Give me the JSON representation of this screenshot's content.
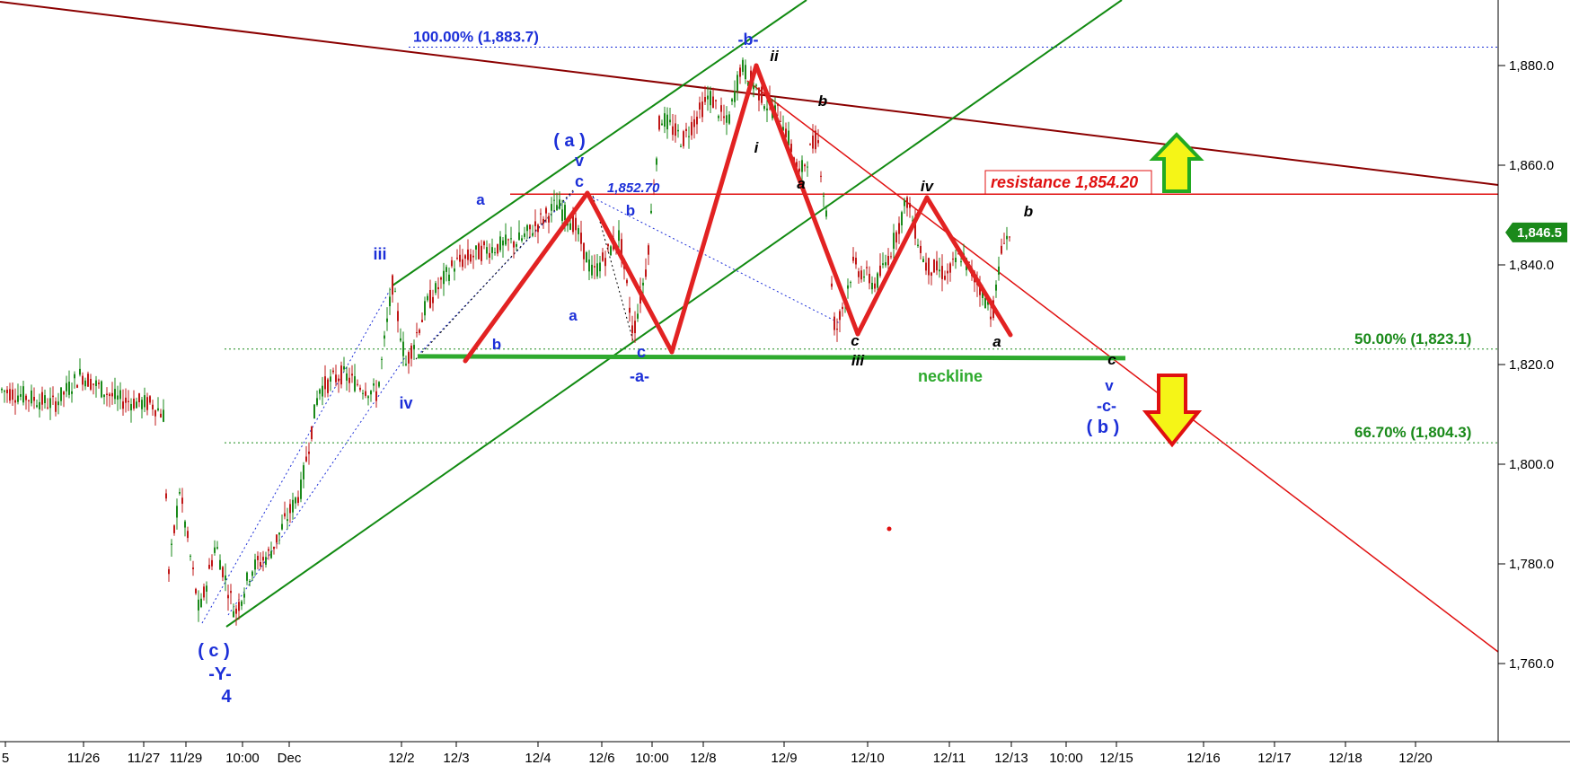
{
  "chart_data": {
    "type": "candlestick",
    "price_ticks": [
      1760,
      1780,
      1800,
      1820,
      1840,
      1860,
      1880
    ],
    "price_tick_labels": [
      "1,760.0",
      "1,780.0",
      "1,800.0",
      "1,820.0",
      "1,840.0",
      "1,860.0",
      "1,880.0"
    ],
    "ylim": [
      1745,
      1893
    ],
    "date_labels": [
      "5",
      "11/26",
      "11/27",
      "11/29",
      "10:00",
      "Dec",
      "12/2",
      "12/3",
      "12/4",
      "12/6",
      "10:00",
      "12/8",
      "12/9",
      "12/10",
      "12/11",
      "12/13",
      "10:00",
      "12/15",
      "12/16",
      "12/17",
      "12/18",
      "12/20"
    ],
    "last_price": "1,846.5",
    "last_value": 1846.5,
    "fib_levels": [
      {
        "label": "100.00% (1,883.7)",
        "value": 1883.7,
        "color": "#1c2fd8"
      },
      {
        "label": "50.00% (1,823.1)",
        "value": 1823.1,
        "color": "#1a8a1a"
      },
      {
        "label": "66.70% (1,804.3)",
        "value": 1804.3,
        "color": "#1a8a1a"
      }
    ],
    "resistance": {
      "label": "resistance 1,854.20",
      "value": 1854.2
    },
    "neckline": {
      "label": "neckline",
      "value": 1822
    },
    "marker_1852": "1,852.70",
    "wave_labels_blue": [
      "iii",
      "iv",
      "a",
      "b",
      "a",
      "( a )",
      "v",
      "c",
      "b",
      "c",
      "-a-",
      "-b-",
      "( c )",
      "-Y-",
      "4",
      "v",
      "-c-",
      "( b )"
    ],
    "wave_labels_black": [
      "ii",
      "i",
      "b",
      "a",
      "c",
      "iii",
      "iv",
      "a",
      "b",
      "c"
    ],
    "arrows": [
      {
        "direction": "up",
        "color": "#f5f517"
      },
      {
        "direction": "down",
        "color": "#f5f517"
      }
    ],
    "series_pattern_zigzag": [
      {
        "t": "12/3",
        "v": 1822
      },
      {
        "t": "12/5",
        "v": 1854
      },
      {
        "t": "12/6",
        "v": 1824
      },
      {
        "t": "12/8",
        "v": 1880
      },
      {
        "t": "12/9",
        "v": 1827
      },
      {
        "t": "12/10",
        "v": 1854
      },
      {
        "t": "12/12",
        "v": 1827
      }
    ]
  }
}
